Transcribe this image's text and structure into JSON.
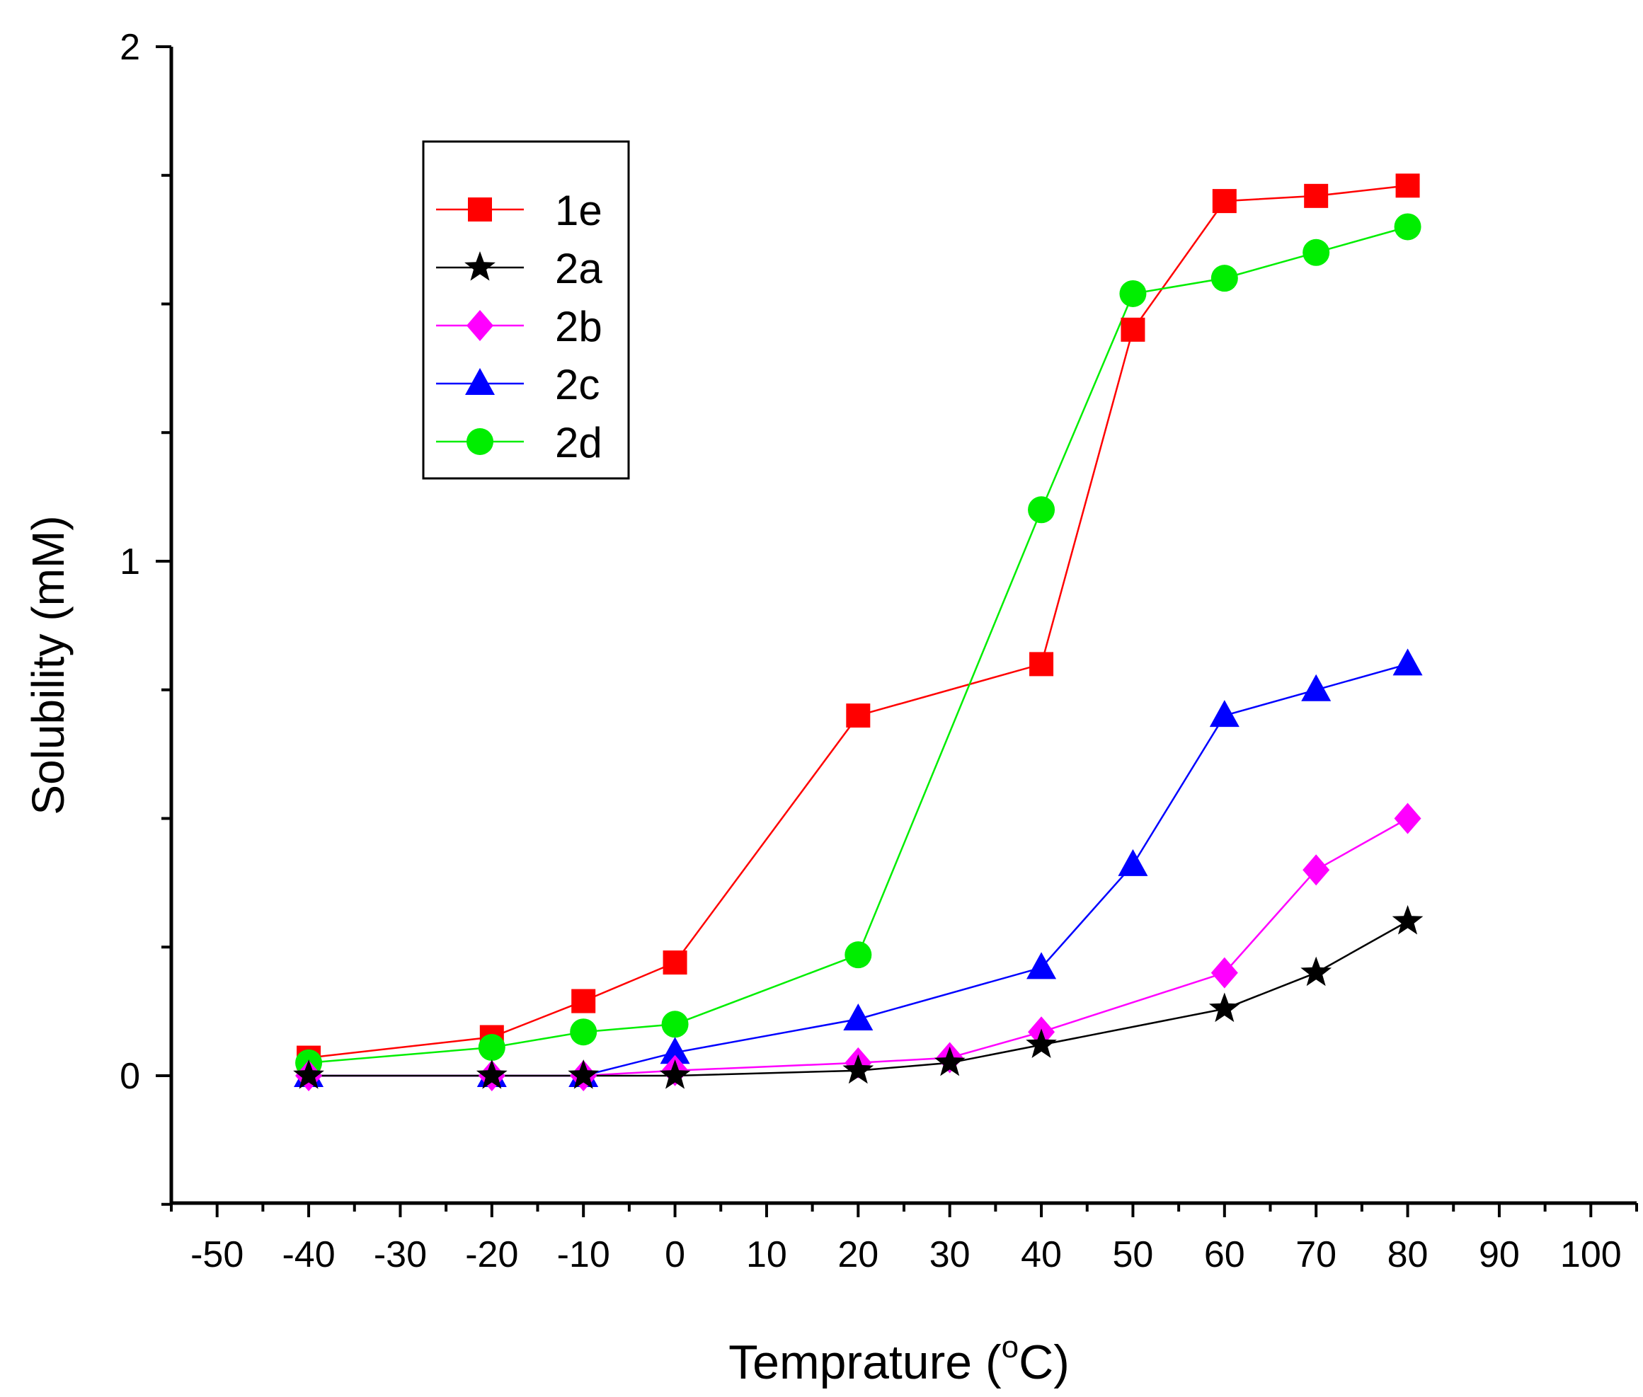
{
  "chart_data": {
    "type": "line",
    "title": "",
    "xlabel_main": "Temprature (",
    "xlabel_sup": "o",
    "xlabel_tail": "C)",
    "ylabel": "Solubility (mM)",
    "xlim": [
      -55,
      105
    ],
    "ylim": [
      -0.25,
      2
    ],
    "x_ticks": [
      -50,
      -40,
      -30,
      -20,
      -10,
      0,
      10,
      20,
      30,
      40,
      50,
      60,
      70,
      80,
      90,
      100
    ],
    "x_tick_labels": [
      "-50",
      "-40",
      "-30",
      "-20",
      "-10",
      "0",
      "10",
      "20",
      "30",
      "40",
      "50",
      "60",
      "70",
      "80",
      "90",
      "100"
    ],
    "y_ticks": [
      0,
      1,
      2
    ],
    "y_tick_labels": [
      "0",
      "1",
      "2"
    ],
    "legend_position": "top-left",
    "series": [
      {
        "name": "1e",
        "color": "#ff0000",
        "marker": "square",
        "x": [
          -40,
          -20,
          -10,
          0,
          20,
          40,
          50,
          60,
          70,
          80
        ],
        "values": [
          0.035,
          0.075,
          0.145,
          0.22,
          0.7,
          0.8,
          1.45,
          1.7,
          1.71,
          1.73
        ]
      },
      {
        "name": "2a",
        "color": "#000000",
        "marker": "star",
        "x": [
          -40,
          -20,
          -10,
          0,
          20,
          30,
          40,
          60,
          70,
          80
        ],
        "values": [
          0.0,
          0.0,
          0.0,
          0.0,
          0.01,
          0.025,
          0.06,
          0.13,
          0.2,
          0.3
        ]
      },
      {
        "name": "2b",
        "color": "#ff00ff",
        "marker": "diamond",
        "x": [
          -40,
          -20,
          -10,
          0,
          20,
          30,
          40,
          60,
          70,
          80
        ],
        "values": [
          0.0,
          0.0,
          0.0,
          0.01,
          0.025,
          0.035,
          0.085,
          0.2,
          0.4,
          0.5
        ]
      },
      {
        "name": "2c",
        "color": "#0000ff",
        "marker": "triangle",
        "x": [
          -40,
          -20,
          -10,
          0,
          20,
          40,
          50,
          60,
          70,
          80
        ],
        "values": [
          0.0,
          0.0,
          0.0,
          0.045,
          0.11,
          0.21,
          0.41,
          0.7,
          0.75,
          0.8
        ]
      },
      {
        "name": "2d",
        "color": "#00ee00",
        "marker": "circle",
        "x": [
          -40,
          -20,
          -10,
          0,
          20,
          40,
          50,
          60,
          70,
          80
        ],
        "values": [
          0.025,
          0.055,
          0.085,
          0.1,
          0.235,
          1.1,
          1.52,
          1.55,
          1.6,
          1.65
        ]
      }
    ]
  }
}
